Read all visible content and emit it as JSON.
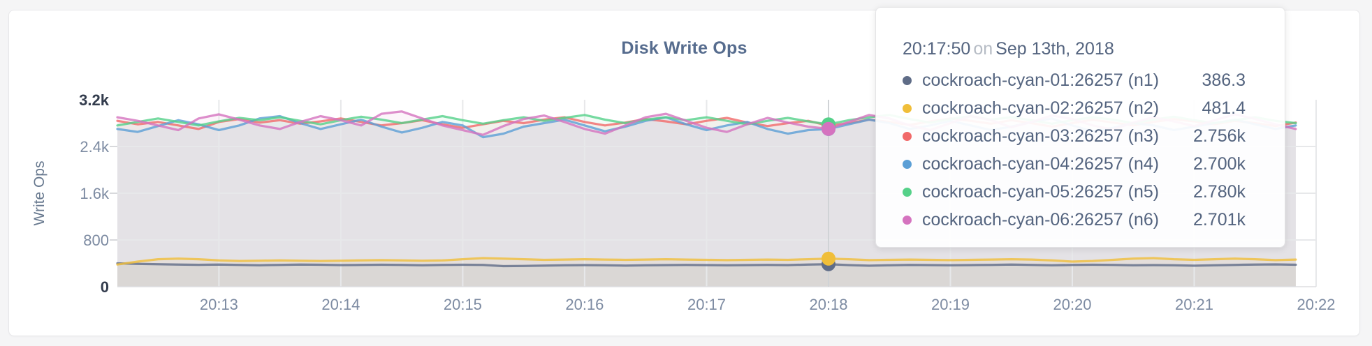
{
  "chart_data": {
    "type": "line",
    "title": "Disk Write Ops",
    "ylabel": "Write Ops",
    "ylim": [
      0,
      3200
    ],
    "grid": true,
    "legend_position": "tooltip",
    "y_ticks": [
      {
        "label": "0",
        "value": 0,
        "strong": true
      },
      {
        "label": "800",
        "value": 800,
        "strong": false
      },
      {
        "label": "1.6k",
        "value": 1600,
        "strong": false
      },
      {
        "label": "2.4k",
        "value": 2400,
        "strong": false
      },
      {
        "label": "3.2k",
        "value": 3200,
        "strong": true
      }
    ],
    "x_axis": {
      "start_time": "20:12:10",
      "end_time": "20:22:00",
      "tick_labels": [
        "20:13",
        "20:14",
        "20:15",
        "20:16",
        "20:17",
        "20:18",
        "20:19",
        "20:20",
        "20:21",
        "20:22"
      ]
    },
    "sample_interval_seconds": 10,
    "series": [
      {
        "name": "cockroach-cyan-01:26257 (n1)",
        "color": "#5F6C87",
        "values": [
          400,
          390,
          385,
          380,
          375,
          378,
          372,
          368,
          374,
          380,
          376,
          370,
          372,
          376,
          372,
          368,
          372,
          376,
          372,
          352,
          356,
          362,
          366,
          370,
          366,
          362,
          366,
          370,
          374,
          370,
          366,
          370,
          374,
          370,
          380,
          386,
          370,
          360,
          368,
          374,
          370,
          366,
          370,
          374,
          378,
          374,
          368,
          372,
          376,
          372,
          366,
          370,
          366,
          360,
          368,
          374,
          378,
          382,
          376
        ]
      },
      {
        "name": "cockroach-cyan-02:26257 (n2)",
        "color": "#F0BE39",
        "values": [
          380,
          430,
          470,
          480,
          470,
          450,
          440,
          445,
          450,
          445,
          440,
          445,
          450,
          455,
          450,
          445,
          450,
          470,
          490,
          480,
          470,
          460,
          465,
          470,
          465,
          460,
          465,
          470,
          465,
          460,
          455,
          460,
          465,
          460,
          470,
          481,
          470,
          455,
          460,
          465,
          460,
          455,
          460,
          465,
          470,
          465,
          450,
          430,
          440,
          460,
          480,
          490,
          470,
          460,
          470,
          480,
          470,
          455,
          465
        ]
      },
      {
        "name": "cockroach-cyan-03:26257 (n3)",
        "color": "#F16969",
        "values": [
          2840,
          2780,
          2820,
          2760,
          2700,
          2820,
          2870,
          2810,
          2850,
          2790,
          2830,
          2880,
          2820,
          2760,
          2800,
          2850,
          2780,
          2720,
          2780,
          2840,
          2800,
          2860,
          2900,
          2820,
          2760,
          2810,
          2870,
          2830,
          2780,
          2840,
          2890,
          2810,
          2750,
          2800,
          2840,
          2756,
          2800,
          2860,
          2820,
          2770,
          2830,
          2880,
          2840,
          2790,
          2850,
          2800,
          2740,
          2800,
          2860,
          2810,
          2760,
          2820,
          2870,
          2830,
          2780,
          2840,
          2800,
          2750,
          2810
        ]
      },
      {
        "name": "cockroach-cyan-04:26257 (n4)",
        "color": "#5B9FD6",
        "values": [
          2700,
          2650,
          2750,
          2850,
          2780,
          2680,
          2760,
          2880,
          2920,
          2800,
          2700,
          2780,
          2860,
          2740,
          2640,
          2720,
          2820,
          2760,
          2560,
          2620,
          2740,
          2800,
          2860,
          2760,
          2660,
          2740,
          2840,
          2900,
          2780,
          2680,
          2760,
          2820,
          2700,
          2620,
          2680,
          2700,
          2780,
          2860,
          2800,
          2700,
          2760,
          2840,
          2760,
          2680,
          2740,
          2820,
          2880,
          2760,
          2660,
          2720,
          2800,
          2760,
          2680,
          2740,
          2800,
          2860,
          2780,
          2700,
          2760
        ]
      },
      {
        "name": "cockroach-cyan-05:26257 (n5)",
        "color": "#55D189",
        "values": [
          2760,
          2820,
          2880,
          2820,
          2760,
          2830,
          2890,
          2850,
          2900,
          2840,
          2780,
          2850,
          2910,
          2860,
          2800,
          2860,
          2920,
          2850,
          2790,
          2850,
          2900,
          2840,
          2890,
          2940,
          2860,
          2800,
          2860,
          2900,
          2850,
          2900,
          2840,
          2780,
          2840,
          2890,
          2830,
          2780,
          2850,
          2900,
          2940,
          2870,
          2810,
          2870,
          2920,
          2860,
          2900,
          2850,
          2790,
          2850,
          2900,
          2860,
          2800,
          2860,
          2910,
          2850,
          2800,
          2850,
          2900,
          2840,
          2800
        ]
      },
      {
        "name": "cockroach-cyan-06:26257 (n6)",
        "color": "#D573BF",
        "values": [
          2900,
          2840,
          2760,
          2680,
          2880,
          2950,
          2860,
          2760,
          2700,
          2820,
          2920,
          2850,
          2760,
          2960,
          3000,
          2880,
          2760,
          2680,
          2600,
          2750,
          2870,
          2930,
          2820,
          2700,
          2620,
          2760,
          2900,
          2960,
          2840,
          2720,
          2650,
          2780,
          2890,
          2810,
          2740,
          2701,
          2820,
          2940,
          2880,
          2760,
          2680,
          2800,
          2920,
          2850,
          2730,
          2820,
          2930,
          2870,
          2760,
          2690,
          2810,
          2900,
          2830,
          2750,
          2850,
          2950,
          2870,
          2780,
          2700
        ]
      }
    ]
  },
  "tooltip": {
    "time": "20:17:50",
    "on_word": "on",
    "date": "Sep 13th, 2018",
    "hover_index": 35,
    "rows": [
      {
        "series": 0,
        "value": "386.3"
      },
      {
        "series": 1,
        "value": "481.4"
      },
      {
        "series": 2,
        "value": "2.756k"
      },
      {
        "series": 3,
        "value": "2.700k"
      },
      {
        "series": 4,
        "value": "2.780k"
      },
      {
        "series": 5,
        "value": "2.701k"
      }
    ]
  },
  "colors": {
    "title_text": "#566c8e",
    "axis_text": "#7d8ba2",
    "axis_text_strong": "#333c4d",
    "grid_line": "#e7e8ea",
    "hover_line": "#d0d3d6",
    "tooltip_text": "#54647f",
    "tooltip_muted": "#b6bcc5"
  }
}
